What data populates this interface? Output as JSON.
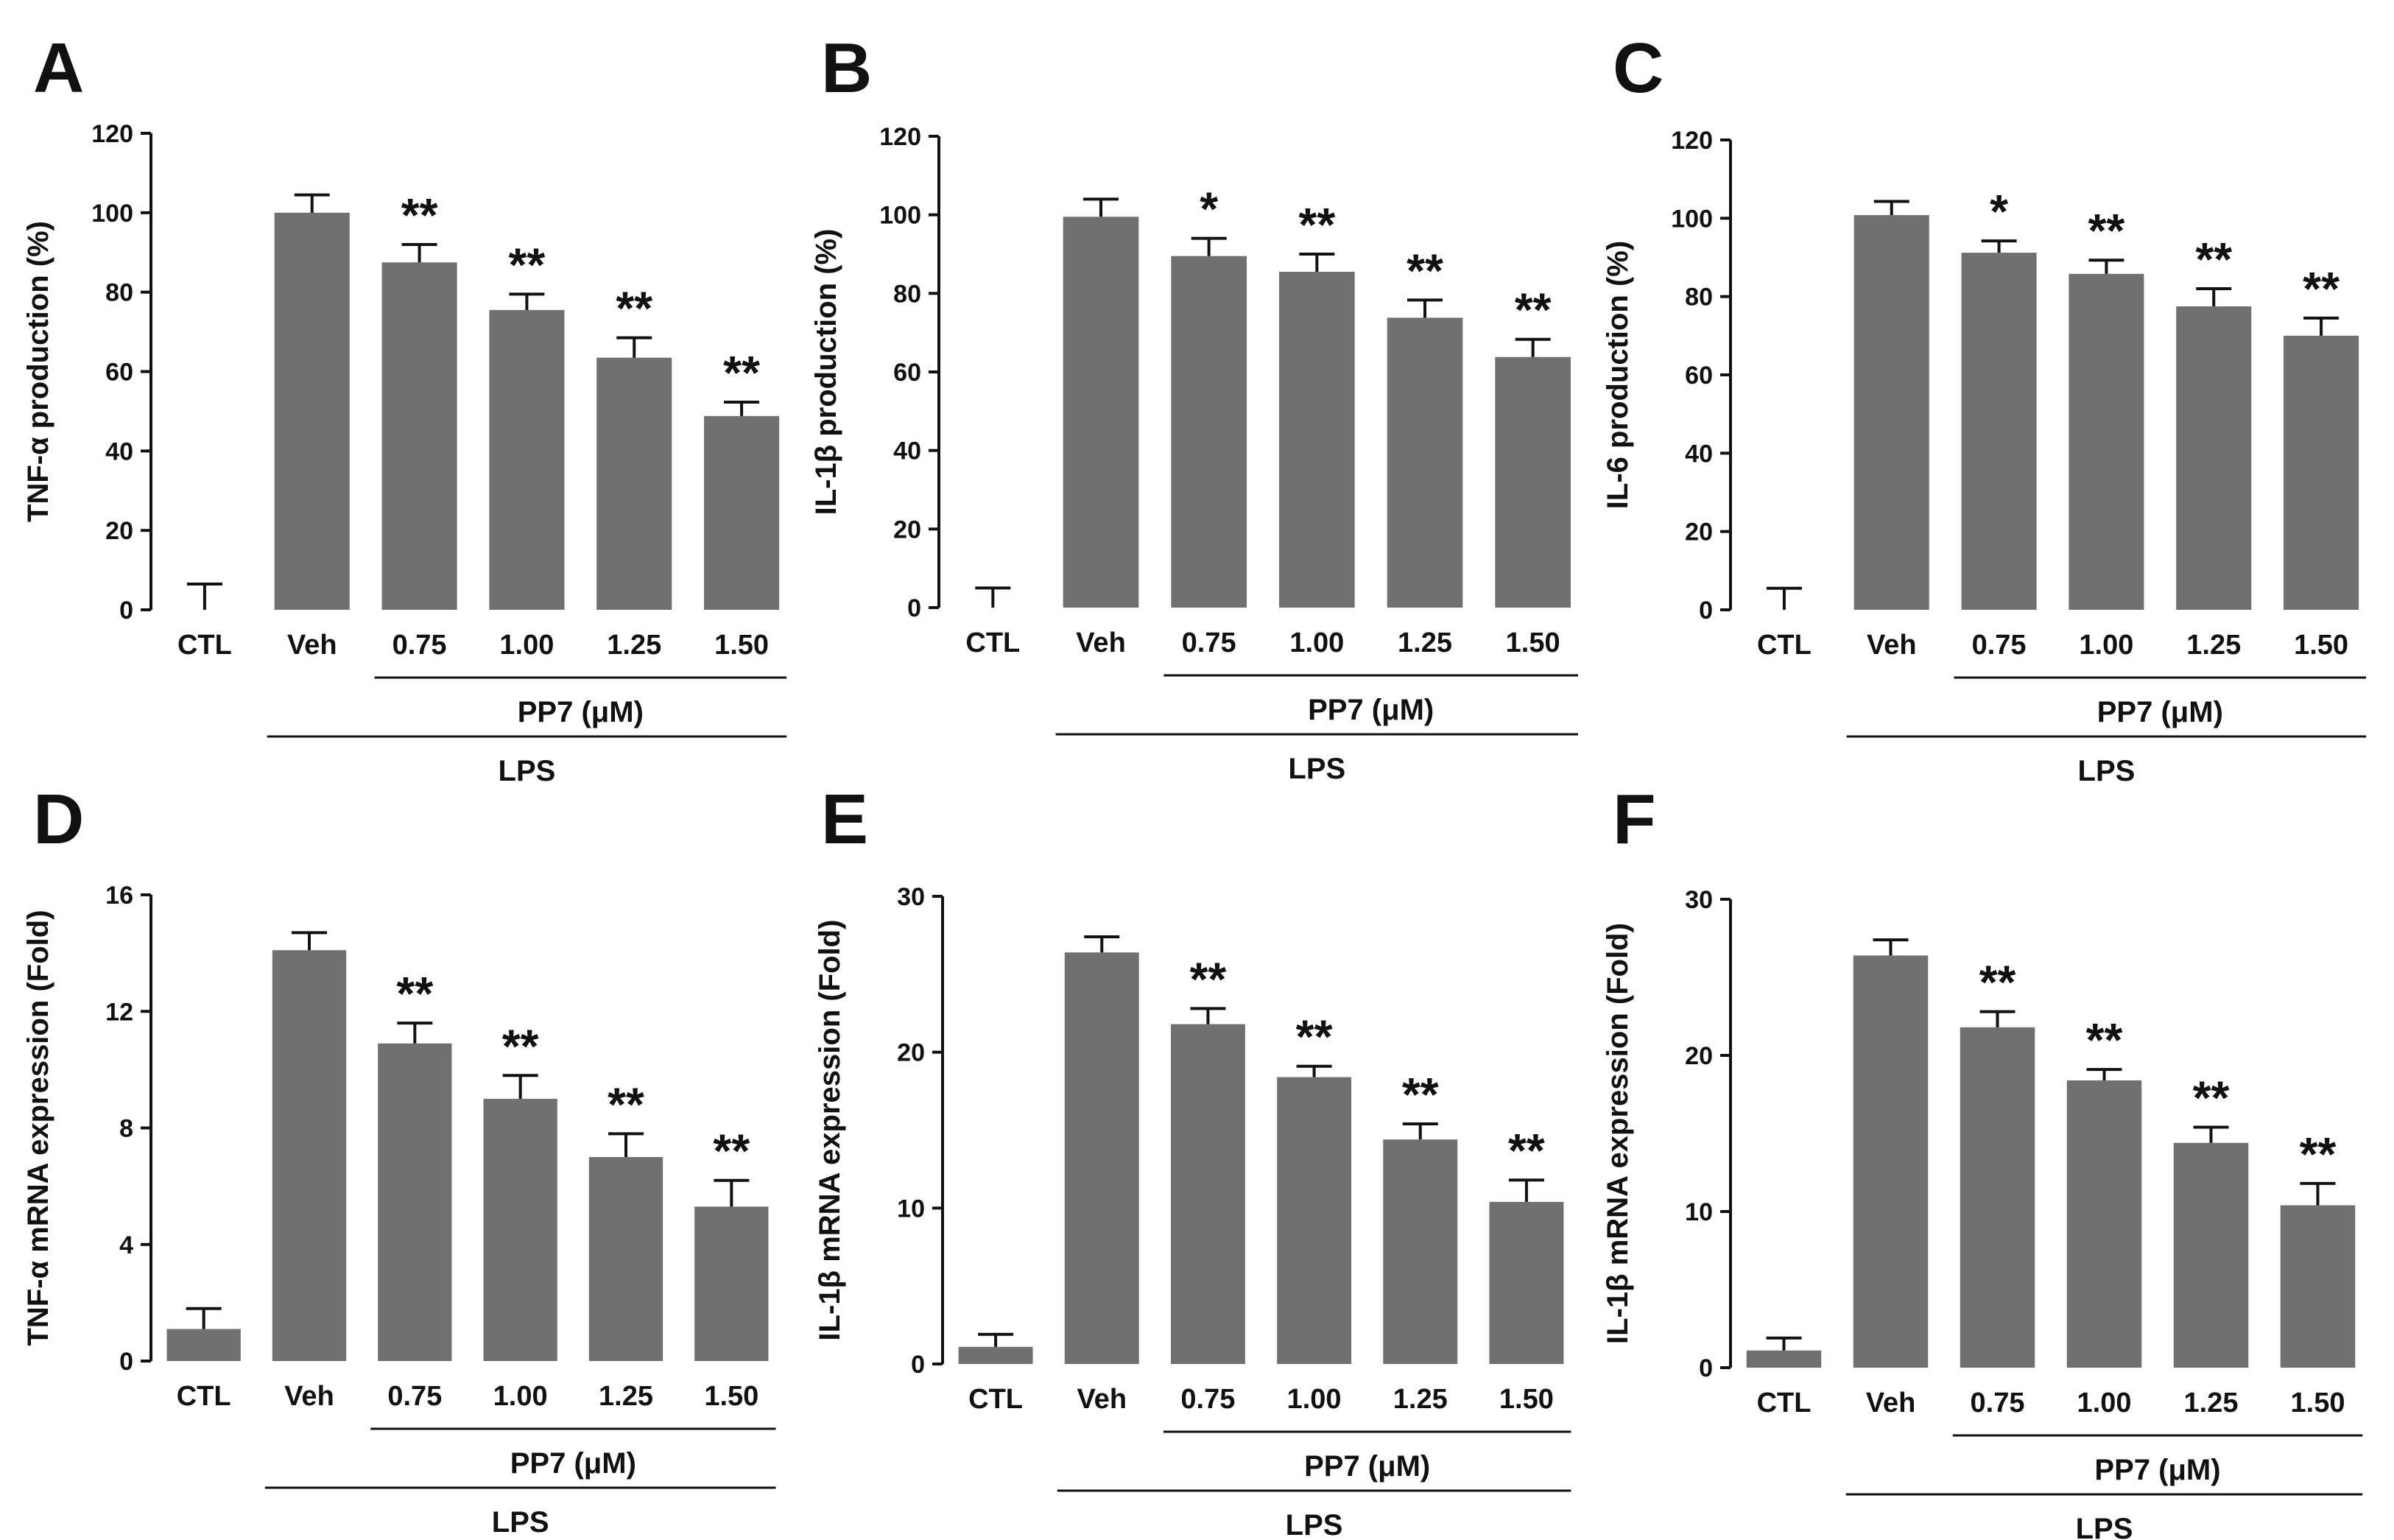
{
  "colors": {
    "bar": "#707070",
    "axis": "#111111"
  },
  "chart_data": [
    {
      "type": "bar",
      "panel": "A",
      "categories": [
        "CTL",
        "Veh",
        "0.75",
        "1.00",
        "1.25",
        "1.50"
      ],
      "values": [
        0,
        100,
        87.5,
        75.5,
        63.5,
        48.8
      ],
      "errors": [
        6.5,
        4.5,
        4.5,
        4,
        5,
        3.5
      ],
      "significance": [
        "",
        "",
        "**",
        "**",
        "**",
        "**"
      ],
      "ylabel": "TNF-α production (%)",
      "ylim": [
        0,
        120
      ],
      "yticks": [
        0,
        20,
        40,
        60,
        80,
        100,
        120
      ],
      "group_labels": {
        "treatment": "PP7 (μM)",
        "stimulus": "LPS"
      }
    },
    {
      "type": "bar",
      "panel": "B",
      "categories": [
        "CTL",
        "Veh",
        "0.75",
        "1.00",
        "1.25",
        "1.50"
      ],
      "values": [
        0,
        99.5,
        89.5,
        85.5,
        73.8,
        63.8
      ],
      "errors": [
        5,
        4.5,
        4.5,
        4.5,
        4.5,
        4.5
      ],
      "significance": [
        "",
        "",
        "*",
        "**",
        "**",
        "**"
      ],
      "ylabel": "IL-1β production (%)",
      "ylim": [
        0,
        120
      ],
      "yticks": [
        0,
        20,
        40,
        60,
        80,
        100,
        120
      ],
      "group_labels": {
        "treatment": "PP7 (μM)",
        "stimulus": "LPS"
      }
    },
    {
      "type": "bar",
      "panel": "C",
      "categories": [
        "CTL",
        "Veh",
        "0.75",
        "1.00",
        "1.25",
        "1.50"
      ],
      "values": [
        0,
        100.8,
        91.2,
        85.8,
        77.5,
        70
      ],
      "errors": [
        5.5,
        3.5,
        3,
        3.5,
        4.5,
        4.5
      ],
      "significance": [
        "",
        "",
        "*",
        "**",
        "**",
        "**"
      ],
      "ylabel": "IL-6 production (%)",
      "ylim": [
        0,
        120
      ],
      "yticks": [
        0,
        20,
        40,
        60,
        80,
        100,
        120
      ],
      "group_labels": {
        "treatment": "PP7 (μM)",
        "stimulus": "LPS"
      }
    },
    {
      "type": "bar",
      "panel": "D",
      "categories": [
        "CTL",
        "Veh",
        "0.75",
        "1.00",
        "1.25",
        "1.50"
      ],
      "values": [
        1.1,
        14.1,
        10.9,
        9.0,
        7.0,
        5.3
      ],
      "errors": [
        0.7,
        0.6,
        0.7,
        0.8,
        0.8,
        0.9
      ],
      "significance": [
        "",
        "",
        "**",
        "**",
        "**",
        "**"
      ],
      "ylabel": "TNF-α mRNA expression (Fold)",
      "ylim": [
        0,
        16
      ],
      "yticks": [
        0,
        4,
        8,
        12,
        16
      ],
      "group_labels": {
        "treatment": "PP7 (μM)",
        "stimulus": "LPS"
      }
    },
    {
      "type": "bar",
      "panel": "E",
      "categories": [
        "CTL",
        "Veh",
        "0.75",
        "1.00",
        "1.25",
        "1.50"
      ],
      "values": [
        1.1,
        26.4,
        21.8,
        18.4,
        14.4,
        10.4
      ],
      "errors": [
        0.8,
        1.0,
        1.0,
        0.7,
        1.0,
        1.4
      ],
      "significance": [
        "",
        "",
        "**",
        "**",
        "**",
        "**"
      ],
      "ylabel": "IL-1β mRNA expression (Fold)",
      "ylim": [
        0,
        30
      ],
      "yticks": [
        0,
        10,
        20,
        30
      ],
      "group_labels": {
        "treatment": "PP7 (μM)",
        "stimulus": "LPS"
      }
    },
    {
      "type": "bar",
      "panel": "F",
      "categories": [
        "CTL",
        "Veh",
        "0.75",
        "1.00",
        "1.25",
        "1.50"
      ],
      "values": [
        1.1,
        26.4,
        21.8,
        18.4,
        14.4,
        10.4
      ],
      "errors": [
        0.8,
        1.0,
        1.0,
        0.7,
        1.0,
        1.4
      ],
      "significance": [
        "",
        "",
        "**",
        "**",
        "**",
        "**"
      ],
      "ylabel": "IL-1β mRNA expression (Fold)",
      "ylim": [
        0,
        30
      ],
      "yticks": [
        0,
        10,
        20,
        30
      ],
      "group_labels": {
        "treatment": "PP7 (μM)",
        "stimulus": "LPS"
      }
    }
  ]
}
